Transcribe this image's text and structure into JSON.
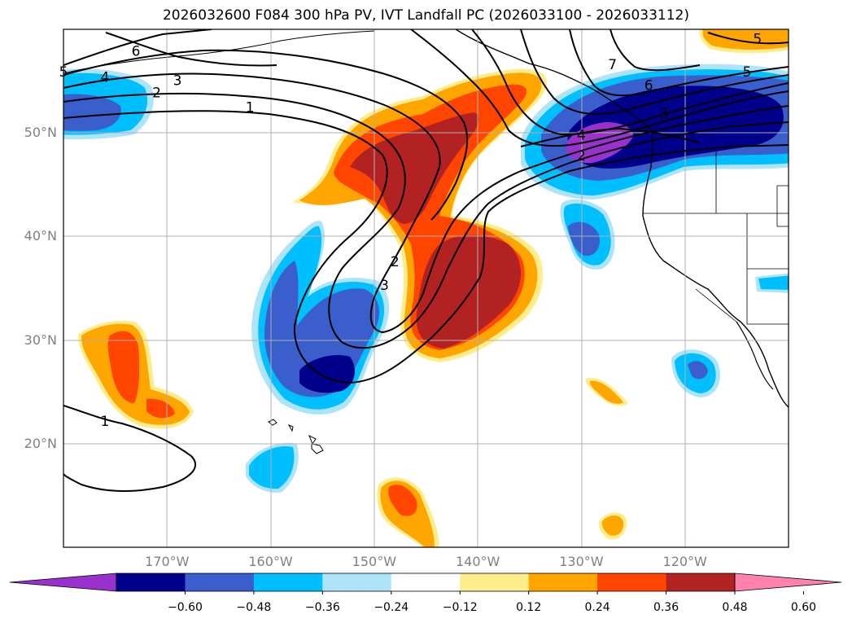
{
  "title": "2026032600 F084 300 hPa PV, IVT Landfall PC (2026033100 - 2026033112)",
  "map": {
    "lon_range": [
      -180,
      -110
    ],
    "lat_range": [
      10,
      60
    ],
    "lat_labels": [
      {
        "lat": 50,
        "text": "50°N"
      },
      {
        "lat": 40,
        "text": "40°N"
      },
      {
        "lat": 30,
        "text": "30°N"
      },
      {
        "lat": 20,
        "text": "20°N"
      }
    ],
    "lon_labels": [
      {
        "lon": -170,
        "text": "170°W"
      },
      {
        "lon": -160,
        "text": "160°W"
      },
      {
        "lon": -150,
        "text": "150°W"
      },
      {
        "lon": -140,
        "text": "140°W"
      },
      {
        "lon": -130,
        "text": "130°W"
      },
      {
        "lon": -120,
        "text": "120°W"
      }
    ],
    "contour_labels": [
      {
        "text": "6",
        "lon": -173,
        "lat": 57.9
      },
      {
        "text": "5",
        "lon": -180,
        "lat": 55.9
      },
      {
        "text": "4",
        "lon": -176,
        "lat": 55.4
      },
      {
        "text": "3",
        "lon": -169,
        "lat": 55.1
      },
      {
        "text": "2",
        "lon": -171,
        "lat": 53.9
      },
      {
        "text": "1",
        "lon": -162,
        "lat": 52.5
      },
      {
        "text": "2",
        "lon": -148,
        "lat": 37.6
      },
      {
        "text": "3",
        "lon": -149,
        "lat": 35.3
      },
      {
        "text": "1",
        "lon": -176,
        "lat": 22.2
      },
      {
        "text": "7",
        "lon": -127,
        "lat": 56.6
      },
      {
        "text": "6",
        "lon": -123.5,
        "lat": 54.6
      },
      {
        "text": "5",
        "lon": -114,
        "lat": 55.9
      },
      {
        "text": "3",
        "lon": -122,
        "lat": 51.9
      },
      {
        "text": "4",
        "lon": -130,
        "lat": 49.8
      },
      {
        "text": "2",
        "lon": -130,
        "lat": 47.8
      },
      {
        "text": "5",
        "lon": -113,
        "lat": 59.1
      }
    ]
  },
  "colorbar": {
    "colors": [
      "#9932cc",
      "#00008b",
      "#3a5fcd",
      "#00bfff",
      "#aee4fa",
      "#ffffff",
      "#ffec8b",
      "#ffa500",
      "#ff4500",
      "#b22222",
      "#ff82ab"
    ],
    "labels": [
      "−0.60",
      "−0.48",
      "−0.36",
      "−0.24",
      "−0.12",
      "0.12",
      "0.24",
      "0.36",
      "0.48",
      "0.60"
    ]
  }
}
